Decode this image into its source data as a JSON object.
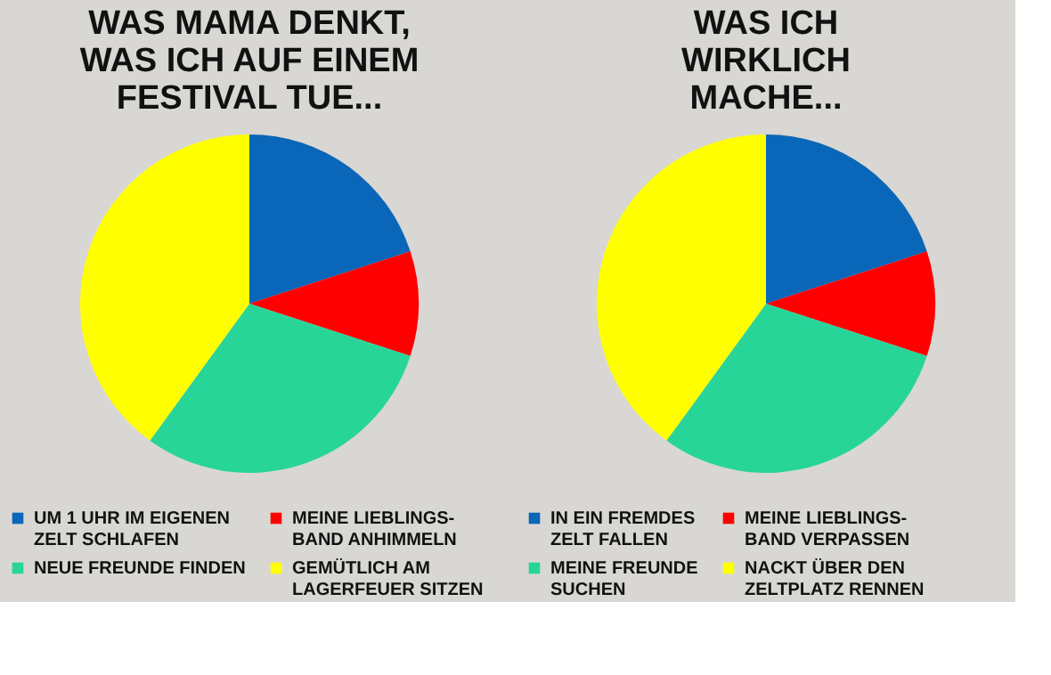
{
  "chart_data": [
    {
      "type": "pie",
      "title": "WAS MAMA DENKT,\nWAS ICH AUF EINEM\nFESTIVAL TUE...",
      "categories": [
        "UM 1 UHR IM EIGENEN\nZELT SCHLAFEN",
        "MEINE LIEBLINGS-\nBAND ANHIMMELN",
        "NEUE FREUNDE FINDEN",
        "GEMÜTLICH AM\nLAGERFEUER SITZEN"
      ],
      "values": [
        20,
        10,
        30,
        40
      ],
      "colors": [
        "#0a66b8",
        "#ff0000",
        "#28d598",
        "#ffff00"
      ],
      "legend": "bottom"
    },
    {
      "type": "pie",
      "title": "WAS ICH\nWIRKLICH\nMACHE...",
      "categories": [
        "IN EIN FREMDES\nZELT FALLEN",
        "MEINE LIEBLINGS-\nBAND VERPASSEN",
        "MEINE FREUNDE\nSUCHEN",
        "NACKT ÜBER DEN\nZELTPLATZ RENNEN"
      ],
      "values": [
        20,
        10,
        30,
        40
      ],
      "colors": [
        "#0a66b8",
        "#ff0000",
        "#28d598",
        "#ffff00"
      ],
      "legend": "bottom"
    }
  ]
}
